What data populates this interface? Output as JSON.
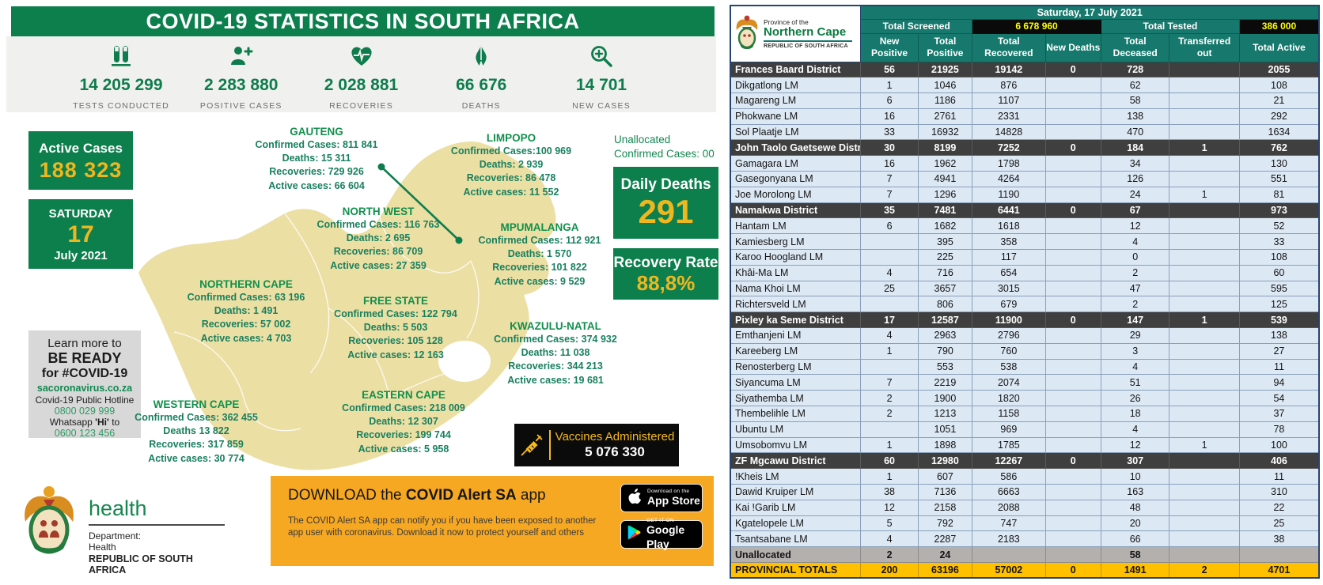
{
  "colors": {
    "green": "#0c7f4d",
    "gold": "#efb71f",
    "map_fill": "#ecdfa4",
    "table_teal": "#17796d",
    "table_black_cell": "#0a0a0a",
    "table_yellow_text": "#ffff00",
    "district_row": "#3f3f3f",
    "lm_row": "#dce8f4",
    "unallocated_row": "#b3b0ae",
    "totals_row": "#ffc000",
    "download_strip": "#f7a823"
  },
  "infographic": {
    "title": "COVID-19 STATISTICS IN SOUTH AFRICA",
    "stats": [
      {
        "icon": "test-tubes-icon",
        "value": "14 205 299",
        "label": "TESTS CONDUCTED"
      },
      {
        "icon": "person-plus-icon",
        "value": "2 283 880",
        "label": "POSITIVE CASES"
      },
      {
        "icon": "heart-pulse-icon",
        "value": "2 028 881",
        "label": "RECOVERIES"
      },
      {
        "icon": "praying-hands-icon",
        "value": "66 676",
        "label": "DEATHS"
      },
      {
        "icon": "magnifier-plus-icon",
        "value": "14 701",
        "label": "NEW CASES"
      }
    ],
    "active_cases": {
      "title": "Active Cases",
      "value": "188 323"
    },
    "date": {
      "day_name": "SATURDAY",
      "day": "17",
      "month_year": "July 2021"
    },
    "unallocated": {
      "line1": "Unallocated",
      "line2": "Confirmed Cases: 00"
    },
    "daily_deaths": {
      "title": "Daily Deaths",
      "value": "291"
    },
    "recovery_rate": {
      "title": "Recovery Rate",
      "value": "88,8%"
    },
    "learn_more": {
      "line1": "Learn more to",
      "line2": "BE READY",
      "line3": "for #COVID-19",
      "site": "sacoronavirus.co.za",
      "hotline_label": "Covid-19 Public Hotline",
      "hotline_number": "0800 029 999",
      "whatsapp_prefix": "Whatsapp ",
      "whatsapp_bold": "'Hi'",
      "whatsapp_suffix": " to",
      "whatsapp_number": "0600 123 456"
    },
    "provinces": [
      {
        "name": "GAUTENG",
        "lines": [
          "Confirmed Cases: 811 841",
          "Deaths: 15 311",
          "Recoveries: 729 926",
          "Active cases: 66 604"
        ]
      },
      {
        "name": "LIMPOPO",
        "lines": [
          "Confirmed Cases:100 969",
          "Deaths: 2 939",
          "Recoveries: 86 478",
          "Active cases: 11 552"
        ]
      },
      {
        "name": "NORTH WEST",
        "lines": [
          "Confirmed Cases: 116 763",
          "Deaths: 2 695",
          "Recoveries: 86 709",
          "Active cases: 27 359"
        ]
      },
      {
        "name": "MPUMALANGA",
        "lines": [
          "Confirmed Cases: 112 921",
          "Deaths:  1 570",
          "Recoveries: 101 822",
          "Active cases: 9 529"
        ]
      },
      {
        "name": "NORTHERN CAPE",
        "lines": [
          "Confirmed Cases: 63 196",
          "Deaths: 1 491",
          "Recoveries: 57 002",
          "Active cases: 4 703"
        ]
      },
      {
        "name": "FREE STATE",
        "lines": [
          "Confirmed Cases: 122 794",
          "Deaths: 5 503",
          "Recoveries:  105 128",
          "Active cases: 12 163"
        ]
      },
      {
        "name": "KWAZULU-NATAL",
        "lines": [
          "Confirmed Cases: 374 932",
          "Deaths: 11 038",
          "Recoveries: 344 213",
          "Active cases: 19 681"
        ]
      },
      {
        "name": "EASTERN CAPE",
        "lines": [
          "Confirmed Cases: 218 009",
          "Deaths: 12 307",
          "Recoveries: 199 744",
          "Active cases: 5 958"
        ]
      },
      {
        "name": "WESTERN CAPE",
        "lines": [
          "Confirmed Cases: 362 455",
          "Deaths 13 822",
          "Recoveries: 317 859",
          "Active cases: 30 774"
        ]
      }
    ],
    "vaccines": {
      "label": "Vaccines Administered",
      "value": "5 076 330"
    },
    "footer": {
      "brand": "health",
      "dept_line1": "Department:",
      "dept_line2": "Health",
      "country": "REPUBLIC OF SOUTH AFRICA"
    },
    "download": {
      "title_part1": "DOWNLOAD the ",
      "title_part2": "COVID Alert SA",
      "title_part3": " app",
      "body": "The COVID Alert SA app can notify you if you have been exposed to another app user with coronavirus. Download it now to protect yourself and others",
      "appstore": {
        "top": "Download on the",
        "bottom": "App Store"
      },
      "googleplay": {
        "top": "GET IT ON",
        "bottom": "Google Play"
      }
    }
  },
  "table": {
    "logo": {
      "line1": "Province of the",
      "line2": "Northern Cape",
      "line3": "REPUBLIC OF SOUTH AFRICA"
    },
    "date_header": "Saturday, 17 July 2021",
    "screened_label": "Total Screened",
    "screened_value": "6 678 960",
    "tested_label": "Total Tested",
    "tested_value": "386 000",
    "columns": [
      "New Positive",
      "Total Positive",
      "Total Recovered",
      "New Deaths",
      "Total Deceased",
      "Transferred out",
      "Total Active"
    ],
    "rows": [
      {
        "name": "Frances Baard District",
        "type": "district",
        "values": [
          "56",
          "21925",
          "19142",
          "0",
          "728",
          "",
          "2055"
        ]
      },
      {
        "name": "Dikgatlong LM",
        "type": "lm",
        "values": [
          "1",
          "1046",
          "876",
          "",
          "62",
          "",
          "108"
        ]
      },
      {
        "name": "Magareng LM",
        "type": "lm",
        "values": [
          "6",
          "1186",
          "1107",
          "",
          "58",
          "",
          "21"
        ]
      },
      {
        "name": "Phokwane LM",
        "type": "lm",
        "values": [
          "16",
          "2761",
          "2331",
          "",
          "138",
          "",
          "292"
        ]
      },
      {
        "name": "Sol Plaatje LM",
        "type": "lm",
        "values": [
          "33",
          "16932",
          "14828",
          "",
          "470",
          "",
          "1634"
        ]
      },
      {
        "name": "John Taolo Gaetsewe District",
        "type": "district",
        "values": [
          "30",
          "8199",
          "7252",
          "0",
          "184",
          "1",
          "762"
        ]
      },
      {
        "name": "Gamagara LM",
        "type": "lm",
        "values": [
          "16",
          "1962",
          "1798",
          "",
          "34",
          "",
          "130"
        ]
      },
      {
        "name": "Gasegonyana LM",
        "type": "lm",
        "values": [
          "7",
          "4941",
          "4264",
          "",
          "126",
          "",
          "551"
        ]
      },
      {
        "name": "Joe Morolong LM",
        "type": "lm",
        "values": [
          "7",
          "1296",
          "1190",
          "",
          "24",
          "1",
          "81"
        ]
      },
      {
        "name": "Namakwa District",
        "type": "district",
        "values": [
          "35",
          "7481",
          "6441",
          "0",
          "67",
          "",
          "973"
        ]
      },
      {
        "name": "Hantam LM",
        "type": "lm",
        "values": [
          "6",
          "1682",
          "1618",
          "",
          "12",
          "",
          "52"
        ]
      },
      {
        "name": "Kamiesberg LM",
        "type": "lm",
        "values": [
          "",
          "395",
          "358",
          "",
          "4",
          "",
          "33"
        ]
      },
      {
        "name": "Karoo Hoogland LM",
        "type": "lm",
        "values": [
          "",
          "225",
          "117",
          "",
          "0",
          "",
          "108"
        ]
      },
      {
        "name": "Khâi-Ma LM",
        "type": "lm",
        "values": [
          "4",
          "716",
          "654",
          "",
          "2",
          "",
          "60"
        ]
      },
      {
        "name": "Nama Khoi LM",
        "type": "lm",
        "values": [
          "25",
          "3657",
          "3015",
          "",
          "47",
          "",
          "595"
        ]
      },
      {
        "name": "Richtersveld LM",
        "type": "lm",
        "values": [
          "",
          "806",
          "679",
          "",
          "2",
          "",
          "125"
        ]
      },
      {
        "name": "Pixley ka Seme District",
        "type": "district",
        "values": [
          "17",
          "12587",
          "11900",
          "0",
          "147",
          "1",
          "539"
        ]
      },
      {
        "name": "Emthanjeni LM",
        "type": "lm",
        "values": [
          "4",
          "2963",
          "2796",
          "",
          "29",
          "",
          "138"
        ]
      },
      {
        "name": "Kareeberg LM",
        "type": "lm",
        "values": [
          "1",
          "790",
          "760",
          "",
          "3",
          "",
          "27"
        ]
      },
      {
        "name": "Renosterberg LM",
        "type": "lm",
        "values": [
          "",
          "553",
          "538",
          "",
          "4",
          "",
          "11"
        ]
      },
      {
        "name": "Siyancuma LM",
        "type": "lm",
        "values": [
          "7",
          "2219",
          "2074",
          "",
          "51",
          "",
          "94"
        ]
      },
      {
        "name": "Siyathemba LM",
        "type": "lm",
        "values": [
          "2",
          "1900",
          "1820",
          "",
          "26",
          "",
          "54"
        ]
      },
      {
        "name": "Thembelihle LM",
        "type": "lm",
        "values": [
          "2",
          "1213",
          "1158",
          "",
          "18",
          "",
          "37"
        ]
      },
      {
        "name": "Ubuntu LM",
        "type": "lm",
        "values": [
          "",
          "1051",
          "969",
          "",
          "4",
          "",
          "78"
        ]
      },
      {
        "name": "Umsobomvu LM",
        "type": "lm",
        "values": [
          "1",
          "1898",
          "1785",
          "",
          "12",
          "1",
          "100"
        ]
      },
      {
        "name": "ZF Mgcawu District",
        "type": "district",
        "values": [
          "60",
          "12980",
          "12267",
          "0",
          "307",
          "",
          "406"
        ]
      },
      {
        "name": "!Kheis LM",
        "type": "lm",
        "values": [
          "1",
          "607",
          "586",
          "",
          "10",
          "",
          "11"
        ]
      },
      {
        "name": "Dawid Kruiper LM",
        "type": "lm",
        "values": [
          "38",
          "7136",
          "6663",
          "",
          "163",
          "",
          "310"
        ]
      },
      {
        "name": "Kai !Garib LM",
        "type": "lm",
        "values": [
          "12",
          "2158",
          "2088",
          "",
          "48",
          "",
          "22"
        ]
      },
      {
        "name": "Kgatelopele LM",
        "type": "lm",
        "values": [
          "5",
          "792",
          "747",
          "",
          "20",
          "",
          "25"
        ]
      },
      {
        "name": "Tsantsabane LM",
        "type": "lm",
        "values": [
          "4",
          "2287",
          "2183",
          "",
          "66",
          "",
          "38"
        ]
      },
      {
        "name": "Unallocated",
        "type": "unallocated",
        "values": [
          "2",
          "24",
          "",
          "",
          "58",
          "",
          ""
        ]
      },
      {
        "name": "PROVINCIAL TOTALS",
        "type": "totals",
        "values": [
          "200",
          "63196",
          "57002",
          "0",
          "1491",
          "2",
          "4701"
        ]
      }
    ]
  }
}
